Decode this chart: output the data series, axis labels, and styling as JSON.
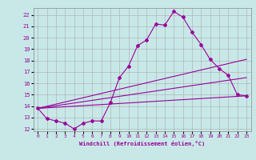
{
  "xlabel": "Windchill (Refroidissement éolien,°C)",
  "background_color": "#c8e8e8",
  "grid_color": "#aaaaaa",
  "line_color": "#990099",
  "xlim": [
    -0.5,
    23.5
  ],
  "ylim": [
    11.8,
    22.6
  ],
  "yticks": [
    12,
    13,
    14,
    15,
    16,
    17,
    18,
    19,
    20,
    21,
    22
  ],
  "xticks": [
    0,
    1,
    2,
    3,
    4,
    5,
    6,
    7,
    8,
    9,
    10,
    11,
    12,
    13,
    14,
    15,
    16,
    17,
    18,
    19,
    20,
    21,
    22,
    23
  ],
  "series": [
    {
      "x": [
        0,
        1,
        2,
        3,
        4,
        5,
        6,
        7,
        8,
        9,
        10,
        11,
        12,
        13,
        14,
        15,
        16,
        17,
        18,
        19,
        20,
        21,
        22,
        23
      ],
      "y": [
        13.8,
        12.9,
        12.7,
        12.5,
        12.0,
        12.5,
        12.7,
        12.7,
        14.3,
        16.5,
        17.5,
        19.3,
        19.8,
        21.2,
        21.1,
        22.3,
        21.8,
        20.5,
        19.4,
        18.1,
        17.3,
        16.7,
        15.0,
        14.9
      ],
      "marker": "D",
      "markersize": 2.0,
      "linewidth": 0.8
    },
    {
      "x": [
        0,
        23
      ],
      "y": [
        13.8,
        14.9
      ],
      "marker": null,
      "markersize": 0,
      "linewidth": 0.8
    },
    {
      "x": [
        0,
        23
      ],
      "y": [
        13.8,
        16.5
      ],
      "marker": null,
      "markersize": 0,
      "linewidth": 0.8
    },
    {
      "x": [
        0,
        23
      ],
      "y": [
        13.8,
        18.1
      ],
      "marker": null,
      "markersize": 0,
      "linewidth": 0.8
    }
  ]
}
